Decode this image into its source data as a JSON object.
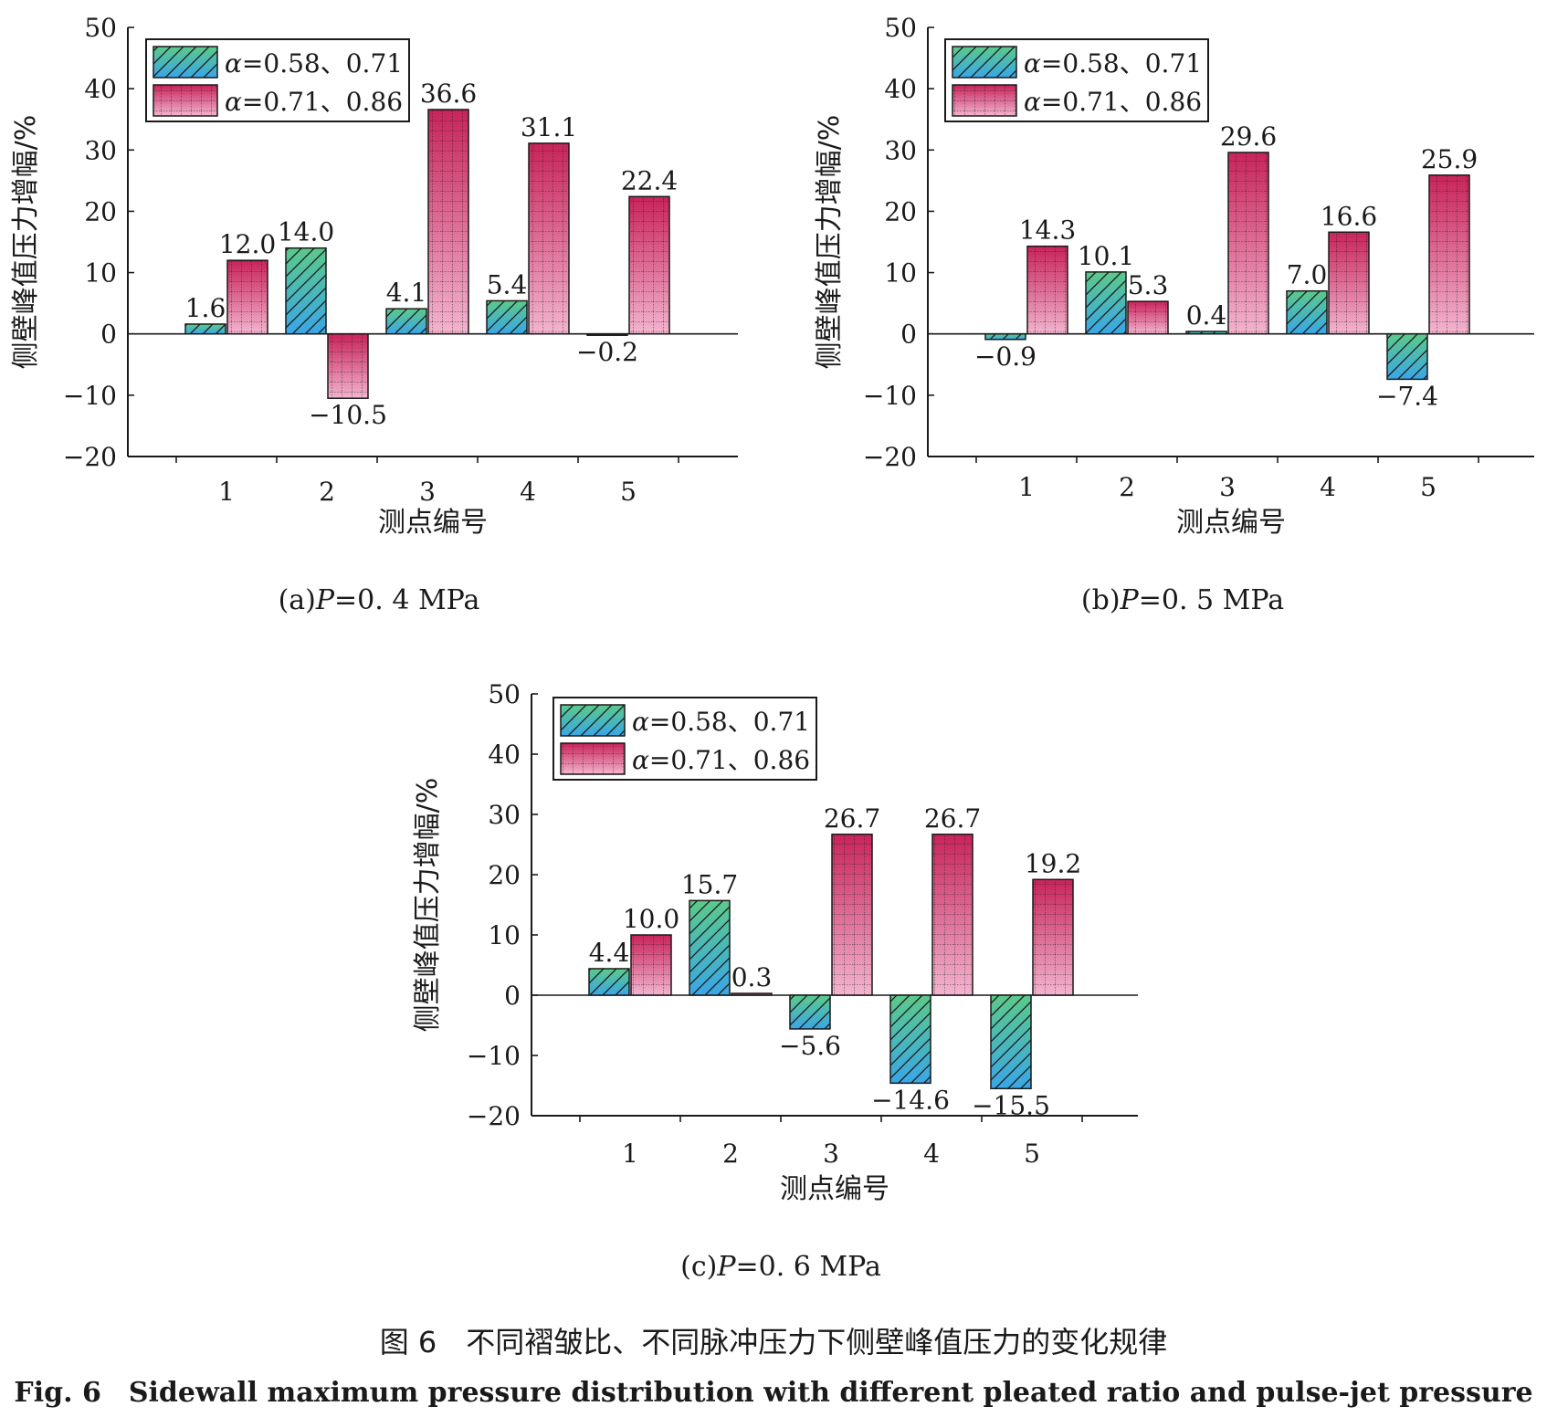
{
  "colors": {
    "series1_top": "#5cc98a",
    "series1_bottom": "#3aa6e6",
    "series2_top": "#c8245a",
    "series2_bottom": "#f2b4cf",
    "axis": "#1a1a1a"
  },
  "chart_data": [
    {
      "type": "bar",
      "panel": "a",
      "caption_prefix": "(a)",
      "caption_var": "P",
      "caption_value": "=0. 4 MPa",
      "categories": [
        "1",
        "2",
        "3",
        "4",
        "5"
      ],
      "series": [
        {
          "name": "α=0.58、0.71",
          "values": [
            1.6,
            14.0,
            4.1,
            5.4,
            -0.2
          ]
        },
        {
          "name": "α=0.71、0.86",
          "values": [
            12.0,
            -10.5,
            36.6,
            31.1,
            22.4
          ]
        }
      ],
      "xlabel": "测点编号",
      "ylabel": "侧壁峰值压力增幅/%",
      "ylim": [
        -20,
        50
      ],
      "yticks": [
        -20,
        -10,
        0,
        10,
        20,
        30,
        40,
        50
      ],
      "legend": "top-left",
      "grid": false
    },
    {
      "type": "bar",
      "panel": "b",
      "caption_prefix": "(b)",
      "caption_var": "P",
      "caption_value": "=0. 5 MPa",
      "categories": [
        "1",
        "2",
        "3",
        "4",
        "5"
      ],
      "series": [
        {
          "name": "α=0.58、0.71",
          "values": [
            -0.9,
            10.1,
            0.4,
            7.0,
            -7.4
          ]
        },
        {
          "name": "α=0.71、0.86",
          "values": [
            14.3,
            5.3,
            29.6,
            16.6,
            25.9
          ]
        }
      ],
      "xlabel": "测点编号",
      "ylabel": "侧壁峰值压力增幅/%",
      "ylim": [
        -20,
        50
      ],
      "yticks": [
        -20,
        -10,
        0,
        10,
        20,
        30,
        40,
        50
      ],
      "legend": "top-left",
      "grid": false
    },
    {
      "type": "bar",
      "panel": "c",
      "caption_prefix": "(c)",
      "caption_var": "P",
      "caption_value": "=0. 6 MPa",
      "categories": [
        "1",
        "2",
        "3",
        "4",
        "5"
      ],
      "series": [
        {
          "name": "α=0.58、0.71",
          "values": [
            4.4,
            15.7,
            -5.6,
            -14.6,
            -15.5
          ]
        },
        {
          "name": "α=0.71、0.86",
          "values": [
            10.0,
            0.3,
            26.7,
            26.7,
            19.2
          ]
        }
      ],
      "xlabel": "测点编号",
      "ylabel": "侧壁峰值压力增幅/%",
      "ylim": [
        -20,
        50
      ],
      "yticks": [
        -20,
        -10,
        0,
        10,
        20,
        30,
        40,
        50
      ],
      "legend": "top-left",
      "grid": false
    }
  ],
  "figure_caption": {
    "cn": "图 6　不同褶皱比、不同脉冲压力下侧壁峰值压力的变化规律",
    "en": "Fig. 6　Sidewall maximum pressure distribution with different pleated ratio and pulse-jet pressure"
  }
}
